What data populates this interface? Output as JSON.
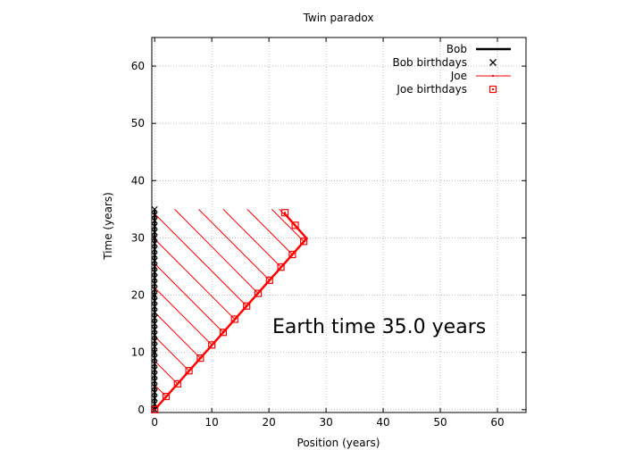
{
  "chart_data": {
    "type": "line",
    "title": "Twin paradox",
    "xlabel": "Position (years)",
    "ylabel": "Time (years)",
    "xlim": [
      -0.5,
      65
    ],
    "ylim": [
      -0.5,
      65
    ],
    "x_ticks": [
      0,
      10,
      20,
      30,
      40,
      50,
      60
    ],
    "y_ticks": [
      0,
      10,
      20,
      30,
      40,
      50,
      60
    ],
    "grid": true,
    "legend_position": "top-right",
    "annotation": "Earth time 35.0 years",
    "series": [
      {
        "name": "Bob",
        "color": "#000000",
        "points": [
          [
            0,
            0
          ],
          [
            0,
            35
          ]
        ]
      },
      {
        "name": "Bob birthdays",
        "color": "#000000",
        "marker": "x",
        "points": [
          [
            0,
            0
          ],
          [
            0,
            1
          ],
          [
            0,
            2
          ],
          [
            0,
            3
          ],
          [
            0,
            4
          ],
          [
            0,
            5
          ],
          [
            0,
            6
          ],
          [
            0,
            7
          ],
          [
            0,
            8
          ],
          [
            0,
            9
          ],
          [
            0,
            10
          ],
          [
            0,
            11
          ],
          [
            0,
            12
          ],
          [
            0,
            13
          ],
          [
            0,
            14
          ],
          [
            0,
            15
          ],
          [
            0,
            16
          ],
          [
            0,
            17
          ],
          [
            0,
            18
          ],
          [
            0,
            19
          ],
          [
            0,
            20
          ],
          [
            0,
            21
          ],
          [
            0,
            22
          ],
          [
            0,
            23
          ],
          [
            0,
            24
          ],
          [
            0,
            25
          ],
          [
            0,
            26
          ],
          [
            0,
            27
          ],
          [
            0,
            28
          ],
          [
            0,
            29
          ],
          [
            0,
            30
          ],
          [
            0,
            31
          ],
          [
            0,
            32
          ],
          [
            0,
            33
          ],
          [
            0,
            34
          ],
          [
            0,
            35
          ]
        ]
      },
      {
        "name": "Joe",
        "color": "#ff0000",
        "points": [
          [
            0,
            0
          ],
          [
            26.6,
            29.9
          ],
          [
            22.6,
            34.4
          ]
        ]
      },
      {
        "name": "Joe birthdays",
        "color": "#ff0000",
        "marker": "square",
        "points": [
          [
            0,
            0
          ],
          [
            2.0,
            2.3
          ],
          [
            4.0,
            4.5
          ],
          [
            6.0,
            6.8
          ],
          [
            8.0,
            9.0
          ],
          [
            10.0,
            11.3
          ],
          [
            12.0,
            13.5
          ],
          [
            14.0,
            15.8
          ],
          [
            16.1,
            18.1
          ],
          [
            18.1,
            20.3
          ],
          [
            20.1,
            22.6
          ],
          [
            22.1,
            24.9
          ],
          [
            24.1,
            27.1
          ],
          [
            26.1,
            29.4
          ],
          [
            24.6,
            32.2
          ],
          [
            22.8,
            34.4
          ]
        ]
      }
    ],
    "light_lines": {
      "color": "#ff0000",
      "note": "signals from Joe's world line toward Bob",
      "segments": [
        [
          [
            2.0,
            2.3
          ],
          [
            0,
            4.3
          ]
        ],
        [
          [
            4.0,
            4.5
          ],
          [
            0,
            8.5
          ]
        ],
        [
          [
            6.0,
            6.8
          ],
          [
            0,
            12.8
          ]
        ],
        [
          [
            8.0,
            9.0
          ],
          [
            0,
            17.0
          ]
        ],
        [
          [
            10.0,
            11.3
          ],
          [
            0,
            21.3
          ]
        ],
        [
          [
            12.0,
            13.5
          ],
          [
            0,
            25.5
          ]
        ],
        [
          [
            14.0,
            15.8
          ],
          [
            0,
            29.8
          ]
        ],
        [
          [
            16.1,
            18.1
          ],
          [
            0,
            34.2
          ]
        ],
        [
          [
            18.1,
            20.3
          ],
          [
            3.5,
            35
          ]
        ],
        [
          [
            20.1,
            22.6
          ],
          [
            7.7,
            35
          ]
        ],
        [
          [
            22.1,
            24.9
          ],
          [
            12.0,
            35
          ]
        ],
        [
          [
            24.1,
            27.1
          ],
          [
            16.2,
            35
          ]
        ],
        [
          [
            26.1,
            29.4
          ],
          [
            20.5,
            35
          ]
        ],
        [
          [
            24.6,
            32.2
          ],
          [
            21.8,
            35
          ]
        ]
      ]
    }
  }
}
